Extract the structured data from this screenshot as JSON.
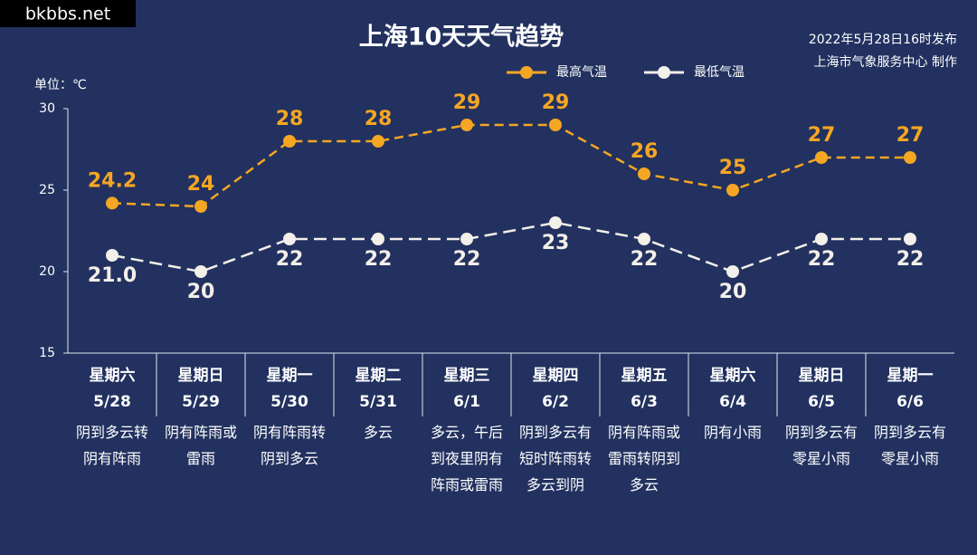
{
  "watermark": "bkbbs.net",
  "chart_data": {
    "type": "line",
    "title": "上海10天天气趋势",
    "publish_time": "2022年5月28日16时发布",
    "producer": "上海市气象服务中心 制作",
    "y_label": "单位：℃",
    "categories": [
      "5/28",
      "5/29",
      "5/30",
      "5/31",
      "6/1",
      "6/2",
      "6/3",
      "6/4",
      "6/5",
      "6/6"
    ],
    "weekdays": [
      "星期六",
      "星期日",
      "星期一",
      "星期二",
      "星期三",
      "星期四",
      "星期五",
      "星期六",
      "星期日",
      "星期一"
    ],
    "weather": [
      "阴到多云转阴有阵雨",
      "阴有阵雨或雷雨",
      "阴有阵雨转阴到多云",
      "多云",
      "多云，午后到夜里阴有阵雨或雷雨",
      "阴到多云有短时阵雨转多云到阴",
      "阴有阵雨或雷雨转阴到多云",
      "阴有小雨",
      "阴到多云有零星小雨",
      "阴到多云有零星小雨"
    ],
    "series": [
      {
        "name": "最高气温",
        "color": "#f5a623",
        "values": [
          24.2,
          24,
          28,
          28,
          29,
          29,
          26,
          25,
          27,
          27
        ]
      },
      {
        "name": "最低气温",
        "color": "#f3efe9",
        "values": [
          21,
          20,
          22,
          22,
          22,
          23,
          22,
          20,
          22,
          22
        ],
        "value_labels": [
          "21.0",
          "20",
          "22",
          "22",
          "22",
          "23",
          "22",
          "20",
          "22",
          "22"
        ]
      }
    ],
    "ylim": [
      15,
      30
    ],
    "yticks": [
      15,
      20,
      25,
      30
    ],
    "grid": false,
    "legend": "top"
  }
}
